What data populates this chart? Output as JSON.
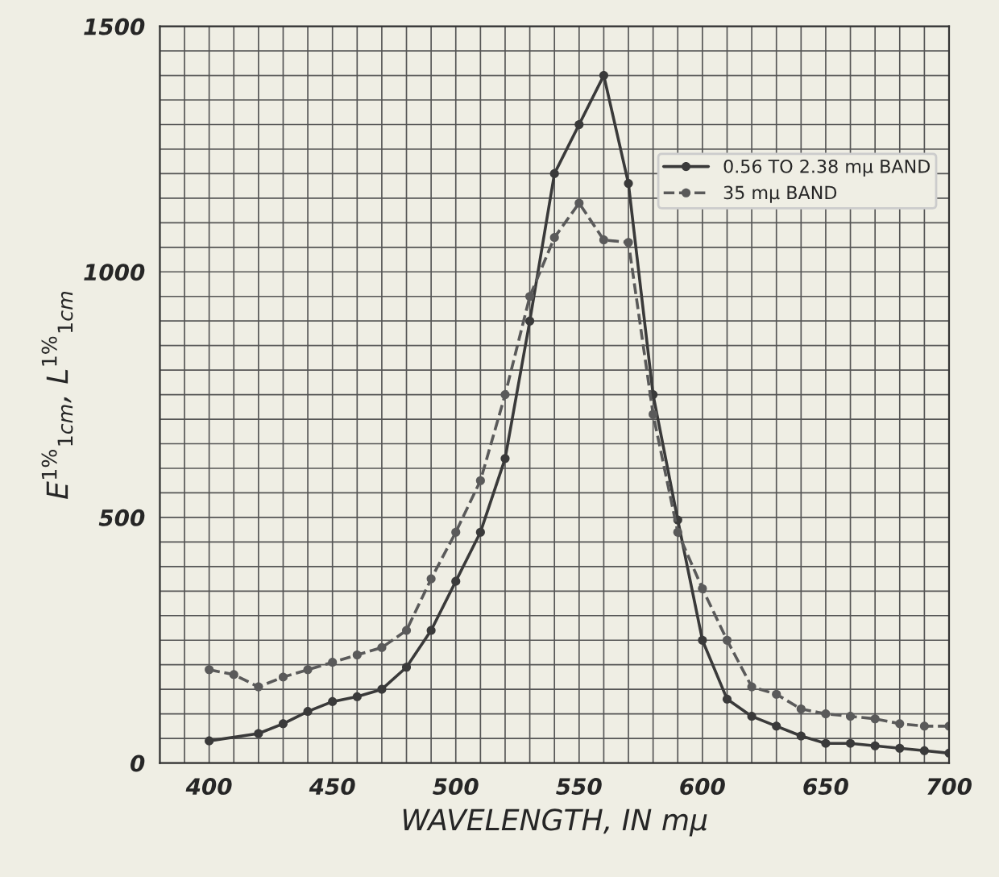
{
  "chart_data": {
    "type": "line",
    "xlabel": "WAVELENGTH, IN mμ",
    "ylabel": "E$^{1%}$$_{1cm}$, L$^{1%}$$_{1cm}$",
    "xlim": [
      380,
      700
    ],
    "ylim": [
      0,
      1500
    ],
    "xticks": [
      {
        "value": 380,
        "label": null
      },
      {
        "value": 390,
        "label": null
      },
      400,
      {
        "value": 410,
        "label": null
      },
      {
        "value": 420,
        "label": null
      },
      {
        "value": 430,
        "label": null
      },
      {
        "value": 440,
        "label": null
      },
      450,
      {
        "value": 460,
        "label": null
      },
      {
        "value": 470,
        "label": null
      },
      {
        "value": 480,
        "label": null
      },
      {
        "value": 490,
        "label": null
      },
      500,
      {
        "value": 510,
        "label": null
      },
      {
        "value": 520,
        "label": null
      },
      {
        "value": 530,
        "label": null
      },
      {
        "value": 540,
        "label": null
      },
      550,
      {
        "value": 560,
        "label": null
      },
      {
        "value": 570,
        "label": null
      },
      {
        "value": 580,
        "label": null
      },
      {
        "value": 590,
        "label": null
      },
      600,
      {
        "value": 610,
        "label": null
      },
      {
        "value": 620,
        "label": null
      },
      {
        "value": 630,
        "label": null
      },
      {
        "value": 640,
        "label": null
      },
      650,
      {
        "value": 660,
        "label": null
      },
      {
        "value": 670,
        "label": null
      },
      {
        "value": 680,
        "label": null
      },
      {
        "value": 690,
        "label": null
      },
      700
    ],
    "yticks": [
      0,
      {
        "value": 50,
        "label": null
      },
      {
        "value": 100,
        "label": null
      },
      {
        "value": 150,
        "label": null
      },
      {
        "value": 200,
        "label": null
      },
      {
        "value": 250,
        "label": null
      },
      {
        "value": 300,
        "label": null
      },
      {
        "value": 350,
        "label": null
      },
      {
        "value": 400,
        "label": null
      },
      {
        "value": 450,
        "label": null
      },
      500,
      {
        "value": 550,
        "label": null
      },
      {
        "value": 600,
        "label": null
      },
      {
        "value": 650,
        "label": null
      },
      {
        "value": 700,
        "label": null
      },
      {
        "value": 750,
        "label": null
      },
      {
        "value": 800,
        "label": null
      },
      {
        "value": 850,
        "label": null
      },
      {
        "value": 900,
        "label": null
      },
      {
        "value": 950,
        "label": null
      },
      1000,
      {
        "value": 1050,
        "label": null
      },
      {
        "value": 1100,
        "label": null
      },
      {
        "value": 1150,
        "label": null
      },
      {
        "value": 1200,
        "label": null
      },
      {
        "value": 1250,
        "label": null
      },
      {
        "value": 1300,
        "label": null
      },
      {
        "value": 1350,
        "label": null
      },
      {
        "value": 1400,
        "label": null
      },
      {
        "value": 1450,
        "label": null
      },
      1500
    ],
    "grid": true,
    "legend": "right",
    "marker": "circle",
    "series": [
      {
        "name": "0.56 TO 2.38 mμ BAND",
        "color": "#3a3a3a",
        "line_style": "solid",
        "x": [
          400,
          420,
          430,
          440,
          450,
          460,
          470,
          480,
          490,
          500,
          510,
          520,
          530,
          540,
          550,
          560,
          570,
          580,
          590,
          600,
          610,
          620,
          630,
          640,
          650,
          660,
          670,
          680,
          690,
          700
        ],
        "values": [
          45,
          60,
          80,
          105,
          125,
          135,
          150,
          195,
          270,
          370,
          470,
          620,
          900,
          1200,
          1300,
          1400,
          1180,
          750,
          495,
          250,
          130,
          95,
          75,
          55,
          40,
          40,
          35,
          30,
          25,
          20
        ]
      },
      {
        "name": "35 mμ BAND",
        "color": "#5a5a5a",
        "line_style": "dashed",
        "x": [
          400,
          410,
          420,
          430,
          440,
          450,
          460,
          470,
          480,
          490,
          500,
          510,
          520,
          530,
          540,
          550,
          560,
          570,
          580,
          590,
          600,
          610,
          620,
          630,
          640,
          650,
          660,
          670,
          680,
          690,
          700
        ],
        "values": [
          190,
          180,
          155,
          175,
          190,
          205,
          220,
          235,
          270,
          375,
          470,
          575,
          750,
          950,
          1070,
          1140,
          1065,
          1060,
          710,
          470,
          355,
          250,
          155,
          140,
          110,
          100,
          95,
          90,
          80,
          75,
          75
        ]
      }
    ]
  }
}
